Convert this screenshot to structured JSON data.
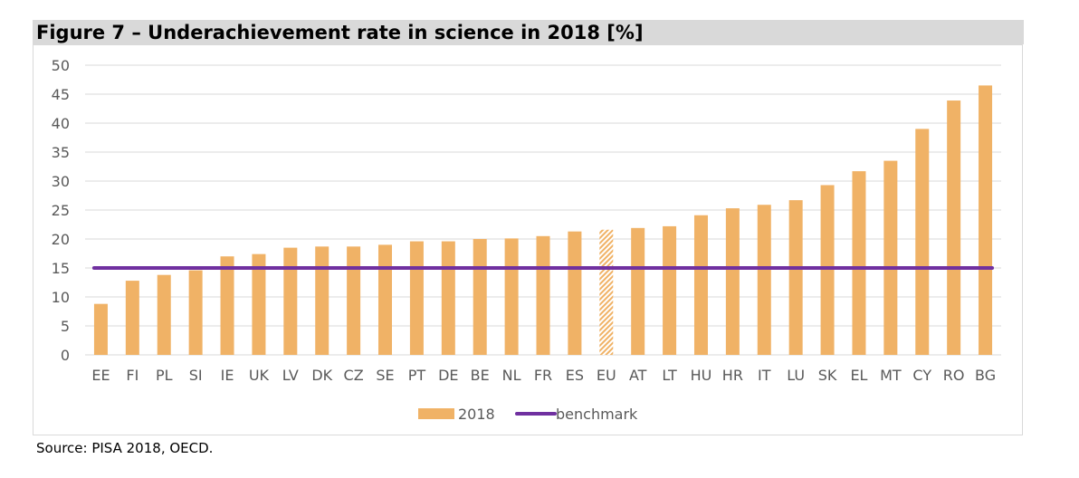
{
  "title": "Figure 7 – Underachievement rate in science in 2018 [%]",
  "source": "Source: PISA 2018, OECD.",
  "colors": {
    "bar": "#f0b266",
    "benchmark": "#7030a0",
    "grid": "#d9d9d9",
    "title_bg": "#d9d9d9"
  },
  "chart_data": {
    "type": "bar",
    "categories": [
      "EE",
      "FI",
      "PL",
      "SI",
      "IE",
      "UK",
      "LV",
      "DK",
      "CZ",
      "SE",
      "PT",
      "DE",
      "BE",
      "NL",
      "FR",
      "ES",
      "EU",
      "AT",
      "LT",
      "HU",
      "HR",
      "IT",
      "LU",
      "SK",
      "EL",
      "MT",
      "CY",
      "RO",
      "BG"
    ],
    "series": [
      {
        "name": "2018",
        "type": "bar",
        "values": [
          8.8,
          12.8,
          13.8,
          14.6,
          17.0,
          17.4,
          18.5,
          18.7,
          18.7,
          19.0,
          19.6,
          19.6,
          20.0,
          20.1,
          20.5,
          21.3,
          21.6,
          21.9,
          22.2,
          24.1,
          25.3,
          25.9,
          26.7,
          29.3,
          31.7,
          33.5,
          39.0,
          43.9,
          46.5
        ],
        "hatched_categories": [
          "EU"
        ]
      },
      {
        "name": "benchmark",
        "type": "line",
        "values": [
          15,
          15,
          15,
          15,
          15,
          15,
          15,
          15,
          15,
          15,
          15,
          15,
          15,
          15,
          15,
          15,
          15,
          15,
          15,
          15,
          15,
          15,
          15,
          15,
          15,
          15,
          15,
          15,
          15
        ]
      }
    ],
    "ylim": [
      0,
      50
    ],
    "yticks": [
      0,
      5,
      10,
      15,
      20,
      25,
      30,
      35,
      40,
      45,
      50
    ],
    "grid": true,
    "legend_position": "bottom"
  }
}
